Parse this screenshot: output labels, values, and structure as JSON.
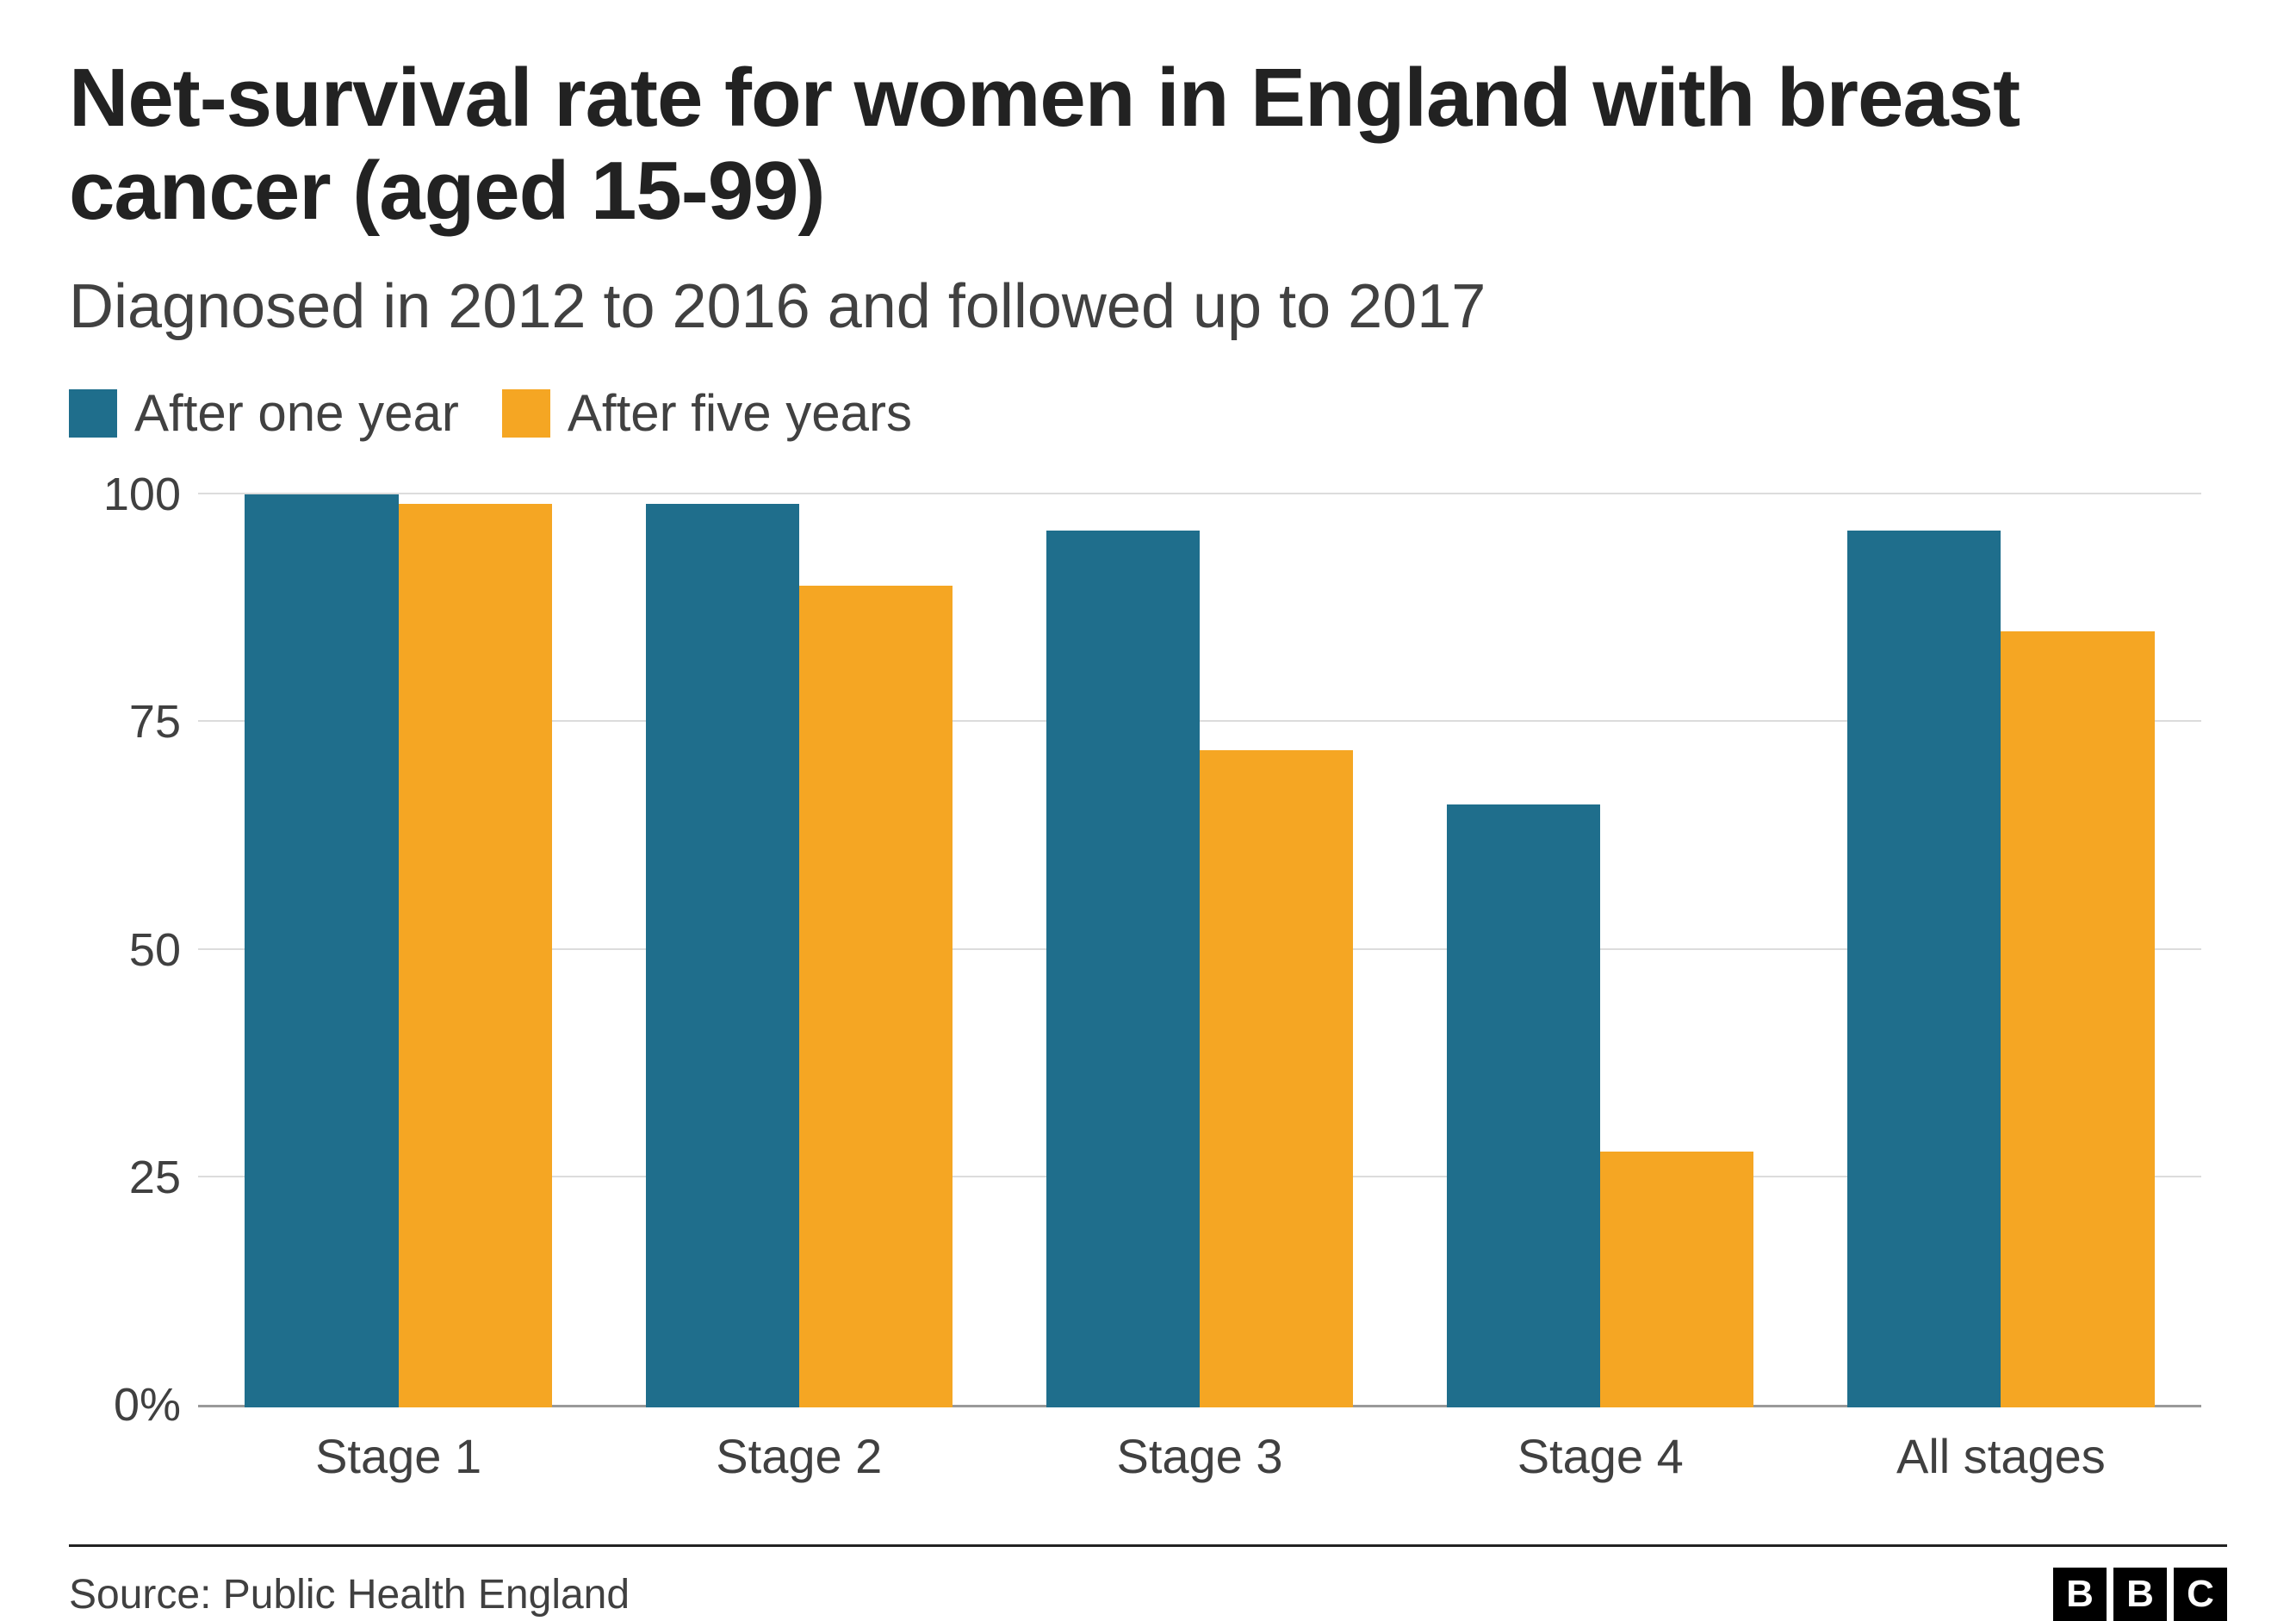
{
  "title": "Net-survival rate for women in England with breast cancer (aged 15-99)",
  "subtitle": "Diagnosed in 2012 to 2016 and followed up to 2017",
  "source": "Source: Public Health England",
  "logo_letters": [
    "B",
    "B",
    "C"
  ],
  "chart": {
    "type": "bar-grouped",
    "ylim": [
      0,
      100
    ],
    "ytick_step": 25,
    "yticks": [
      {
        "value": 0,
        "label": "0%"
      },
      {
        "value": 25,
        "label": "25"
      },
      {
        "value": 50,
        "label": "50"
      },
      {
        "value": 75,
        "label": "75"
      },
      {
        "value": 100,
        "label": "100"
      }
    ],
    "grid_color": "#dcdcdc",
    "axis_color": "#999999",
    "background_color": "#ffffff",
    "label_fontsize": 54,
    "categories": [
      "Stage 1",
      "Stage 2",
      "Stage 3",
      "Stage 4",
      "All stages"
    ],
    "series": [
      {
        "name": "After one year",
        "color": "#1f6e8c",
        "values": [
          100,
          99,
          96,
          66,
          96
        ]
      },
      {
        "name": "After five years",
        "color": "#f5a623",
        "values": [
          99,
          90,
          72,
          28,
          85
        ]
      }
    ]
  }
}
